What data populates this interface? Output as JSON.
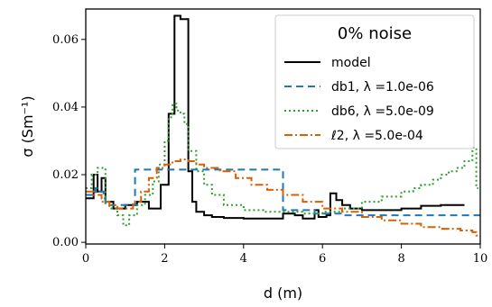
{
  "chart_data": {
    "type": "line",
    "legend_title": "0% noise",
    "legend_position": "top-right",
    "xlabel": "d (m)",
    "ylabel": "σ (Sm⁻¹)",
    "xlim": [
      0,
      10
    ],
    "ylim": [
      -0.0005,
      0.069
    ],
    "xticks": [
      0,
      2,
      4,
      6,
      8,
      10
    ],
    "yticks": [
      0.0,
      0.02,
      0.04,
      0.06
    ],
    "ytick_labels": [
      "0.00",
      "0.02",
      "0.04",
      "0.06"
    ],
    "grid": false,
    "series": [
      {
        "name": "model",
        "color": "#000000",
        "dash": "",
        "width": 2,
        "step": true,
        "x": [
          0.0,
          0.2,
          0.3,
          0.4,
          0.5,
          0.7,
          1.0,
          1.3,
          1.6,
          1.9,
          2.1,
          2.25,
          2.4,
          2.6,
          2.7,
          2.8,
          3.0,
          3.2,
          3.5,
          4.0,
          4.5,
          5.0,
          5.3,
          5.5,
          5.8,
          5.9,
          6.1,
          6.2,
          6.35,
          6.5,
          6.7,
          7.0,
          7.5,
          8.0,
          8.5,
          9.0,
          9.5
        ],
        "y": [
          0.013,
          0.02,
          0.015,
          0.019,
          0.012,
          0.01,
          0.011,
          0.012,
          0.01,
          0.017,
          0.038,
          0.067,
          0.066,
          0.021,
          0.012,
          0.009,
          0.008,
          0.0075,
          0.0072,
          0.007,
          0.007,
          0.0085,
          0.008,
          0.007,
          0.0095,
          0.0075,
          0.008,
          0.0145,
          0.0125,
          0.011,
          0.01,
          0.0095,
          0.0095,
          0.01,
          0.0108,
          0.011,
          0.011
        ]
      },
      {
        "name": "db1, λ =1.0e-06",
        "color": "#1f77b4",
        "dash": "8,5",
        "width": 2,
        "step": true,
        "x": [
          0.0,
          0.25,
          0.35,
          0.45,
          0.5,
          1.25,
          5.0,
          5.8,
          6.5,
          10.0
        ],
        "y": [
          0.014,
          0.016,
          0.015,
          0.013,
          0.011,
          0.0215,
          0.0095,
          0.0085,
          0.008,
          0.008
        ]
      },
      {
        "name": "db6, λ =5.0e-09",
        "color": "#2ca02c",
        "dash": "2,3",
        "width": 2,
        "step": true,
        "x": [
          0.0,
          0.15,
          0.3,
          0.5,
          0.6,
          0.8,
          0.95,
          1.1,
          1.3,
          1.5,
          1.7,
          1.85,
          2.0,
          2.1,
          2.2,
          2.3,
          2.4,
          2.5,
          2.6,
          2.8,
          3.0,
          3.2,
          3.5,
          4.0,
          4.5,
          5.0,
          5.5,
          6.0,
          6.5,
          7.0,
          7.5,
          8.0,
          8.3,
          8.5,
          8.8,
          9.0,
          9.2,
          9.4,
          9.6,
          9.8,
          9.9
        ],
        "y": [
          0.016,
          0.02,
          0.022,
          0.012,
          0.01,
          0.008,
          0.005,
          0.008,
          0.011,
          0.014,
          0.018,
          0.023,
          0.03,
          0.037,
          0.041,
          0.039,
          0.038,
          0.035,
          0.027,
          0.021,
          0.017,
          0.014,
          0.011,
          0.0095,
          0.009,
          0.009,
          0.0085,
          0.009,
          0.01,
          0.012,
          0.0135,
          0.015,
          0.016,
          0.017,
          0.0185,
          0.02,
          0.021,
          0.022,
          0.024,
          0.028,
          0.016
        ]
      },
      {
        "name": "ℓ2, λ =5.0e-04",
        "color": "#d95f02",
        "dash": "9,3,2,3",
        "width": 2,
        "step": true,
        "x": [
          0.0,
          0.2,
          0.4,
          0.6,
          0.8,
          1.0,
          1.2,
          1.4,
          1.6,
          1.8,
          2.0,
          2.2,
          2.4,
          2.6,
          2.8,
          3.0,
          3.4,
          3.8,
          4.2,
          4.6,
          5.0,
          5.5,
          6.0,
          6.5,
          7.0,
          7.5,
          8.0,
          8.5,
          9.0,
          9.5,
          9.8,
          9.9
        ],
        "y": [
          0.015,
          0.014,
          0.012,
          0.011,
          0.01,
          0.01,
          0.012,
          0.015,
          0.019,
          0.022,
          0.023,
          0.024,
          0.0245,
          0.024,
          0.023,
          0.022,
          0.021,
          0.019,
          0.017,
          0.0155,
          0.014,
          0.012,
          0.01,
          0.009,
          0.0075,
          0.0065,
          0.0055,
          0.0045,
          0.004,
          0.0035,
          0.003,
          0.002
        ]
      }
    ]
  }
}
